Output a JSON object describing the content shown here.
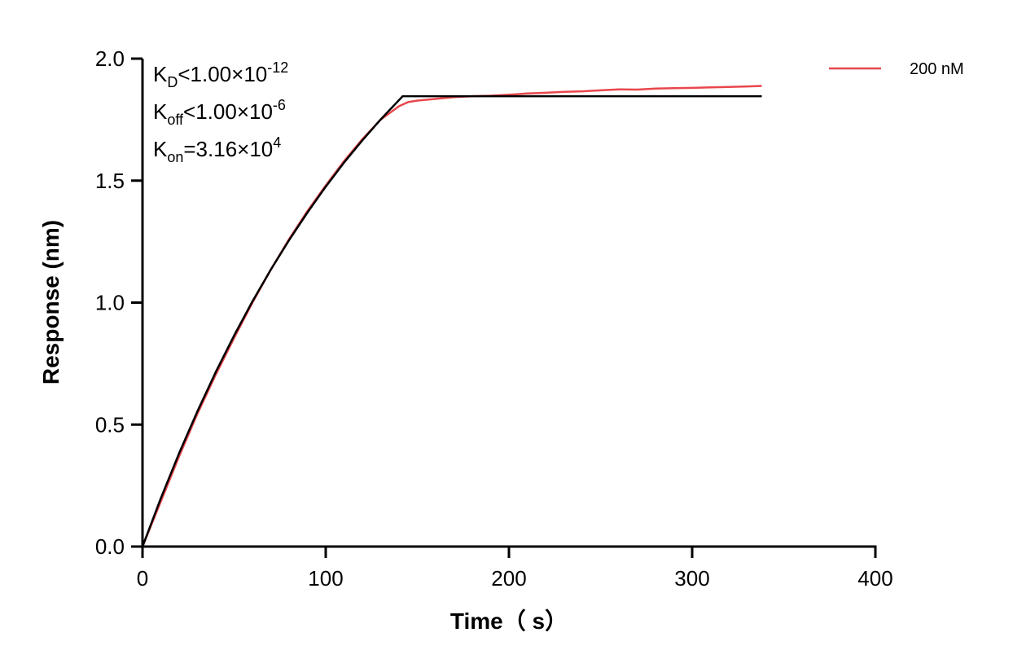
{
  "chart_data": {
    "type": "line",
    "xlabel": "Time（ s）",
    "ylabel": "Response (nm)",
    "xlim": [
      0,
      400
    ],
    "ylim": [
      0,
      2.0
    ],
    "xticks": [
      "0",
      "100",
      "200",
      "300",
      "400"
    ],
    "yticks": [
      "0.0",
      "0.5",
      "1.0",
      "1.5",
      "2.0"
    ],
    "grid": false,
    "legend_placement": "top-right",
    "annotations": [
      {
        "main": "K",
        "sub": "D",
        "rel": "<1.00×10",
        "sup": "-12"
      },
      {
        "main": "K",
        "sub": "off",
        "rel": "<1.00×10",
        "sup": "-6"
      },
      {
        "main": "K",
        "sub": "on",
        "rel": "=3.16×10",
        "sup": "4"
      }
    ],
    "series": [
      {
        "name": "200 nM",
        "color": "#e8474c",
        "role": "measured",
        "x": [
          0,
          10,
          20,
          30,
          40,
          50,
          60,
          70,
          80,
          90,
          100,
          110,
          120,
          130,
          140,
          145,
          150,
          160,
          170,
          180,
          190,
          200,
          210,
          220,
          230,
          240,
          250,
          260,
          270,
          280,
          290,
          300,
          310,
          320,
          330,
          338
        ],
        "y": [
          0,
          0.185,
          0.37,
          0.545,
          0.705,
          0.855,
          1.0,
          1.135,
          1.26,
          1.375,
          1.48,
          1.58,
          1.67,
          1.75,
          1.805,
          1.822,
          1.828,
          1.835,
          1.842,
          1.846,
          1.848,
          1.852,
          1.857,
          1.86,
          1.864,
          1.866,
          1.87,
          1.874,
          1.873,
          1.877,
          1.879,
          1.88,
          1.882,
          1.884,
          1.886,
          1.888
        ]
      },
      {
        "color": "#000000",
        "role": "fit",
        "x": [
          0,
          10,
          20,
          30,
          40,
          50,
          60,
          70,
          80,
          90,
          100,
          110,
          120,
          130,
          142,
          338
        ],
        "y": [
          0,
          0.198,
          0.383,
          0.555,
          0.716,
          0.865,
          1.005,
          1.135,
          1.256,
          1.369,
          1.475,
          1.574,
          1.665,
          1.751,
          1.846,
          1.846
        ]
      }
    ]
  }
}
